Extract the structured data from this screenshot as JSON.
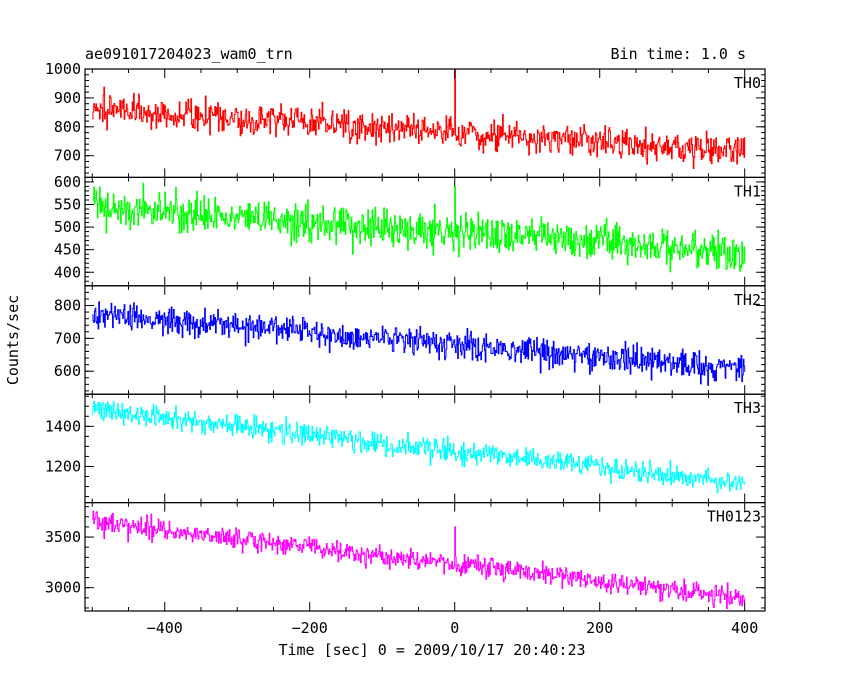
{
  "header": {
    "title": "ae091017204023_wam0_trn",
    "bin_time": "Bin time: 1.0 s"
  },
  "chart_data": {
    "type": "line",
    "xlabel": "Time [sec] 0 = 2009/10/17 20:40:23",
    "ylabel": "Counts/sec",
    "xlim": [
      -510,
      428
    ],
    "x_ticks": [
      -400,
      -200,
      0,
      200,
      400
    ],
    "x_tick_labels": [
      "−400",
      "−200",
      "0",
      "200",
      "400"
    ],
    "x_minor_step": 50,
    "x_start": -500,
    "x_end": 400,
    "panels": [
      {
        "name": "TH0",
        "color": "#ff0000",
        "ylim": [
          625,
          1000
        ],
        "ticks": [
          700,
          800,
          900,
          1000
        ],
        "minor_step": 20,
        "trend_start": 865,
        "trend_end": 715,
        "noise": 38,
        "spike": {
          "x": 0,
          "value": 1000
        }
      },
      {
        "name": "TH1",
        "color": "#00ff00",
        "ylim": [
          370,
          610
        ],
        "ticks": [
          400,
          450,
          500,
          550,
          600
        ],
        "minor_step": 10,
        "trend_start": 545,
        "trend_end": 445,
        "noise": 30,
        "spike": {
          "x": 0,
          "value": 590
        }
      },
      {
        "name": "TH2",
        "color": "#0000ff",
        "ylim": [
          530,
          860
        ],
        "ticks": [
          600,
          700,
          800
        ],
        "minor_step": 20,
        "trend_start": 775,
        "trend_end": 605,
        "noise": 30,
        "spike": null
      },
      {
        "name": "TH3",
        "color": "#00ffff",
        "ylim": [
          1020,
          1560
        ],
        "ticks": [
          1200,
          1400
        ],
        "minor_step": 50,
        "trend_start": 1480,
        "trend_end": 1115,
        "noise": 40,
        "spike": null
      },
      {
        "name": "TH0123",
        "color": "#ff00ff",
        "ylim": [
          2770,
          3840
        ],
        "ticks": [
          3000,
          3500
        ],
        "minor_step": 100,
        "trend_start": 3650,
        "trend_end": 2900,
        "noise": 70,
        "spike": {
          "x": 0,
          "value": 3600
        }
      }
    ]
  }
}
